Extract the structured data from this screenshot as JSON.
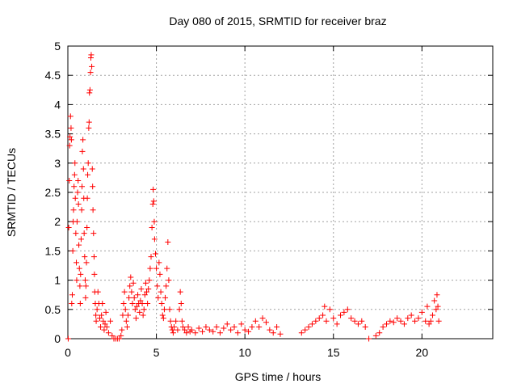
{
  "chart_data": {
    "type": "scatter",
    "title": "Day 080 of 2015, SRMTID for receiver braz",
    "xlabel": "GPS time / hours",
    "ylabel": "SRMTID / TECUs",
    "xlim": [
      0,
      24
    ],
    "ylim": [
      0,
      5
    ],
    "xticks": [
      0,
      5,
      10,
      15,
      20
    ],
    "yticks": [
      0,
      0.5,
      1,
      1.5,
      2,
      2.5,
      3,
      3.5,
      4,
      4.5,
      5
    ],
    "xtick_labels": [
      "0",
      "5",
      "10",
      "15",
      "20"
    ],
    "ytick_labels": [
      "0",
      "0.5",
      "1",
      "1.5",
      "2",
      "2.5",
      "3",
      "3.5",
      "4",
      "4.5",
      "5"
    ],
    "grid": true,
    "marker": "plus",
    "color": "#ff0000",
    "series": [
      {
        "name": "SRMTID",
        "points": [
          [
            0.02,
            0.0
          ],
          [
            0.05,
            1.9
          ],
          [
            0.08,
            2.7
          ],
          [
            0.1,
            3.3
          ],
          [
            0.12,
            3.45
          ],
          [
            0.15,
            3.8
          ],
          [
            0.18,
            3.6
          ],
          [
            0.2,
            3.4
          ],
          [
            0.22,
            0.6
          ],
          [
            0.25,
            0.75
          ],
          [
            0.28,
            1.5
          ],
          [
            0.3,
            2.0
          ],
          [
            0.32,
            2.2
          ],
          [
            0.35,
            2.6
          ],
          [
            0.38,
            2.8
          ],
          [
            0.4,
            3.0
          ],
          [
            0.42,
            2.4
          ],
          [
            0.45,
            1.8
          ],
          [
            0.48,
            1.3
          ],
          [
            0.5,
            1.0
          ],
          [
            0.52,
            2.0
          ],
          [
            0.55,
            2.5
          ],
          [
            0.58,
            2.7
          ],
          [
            0.6,
            2.3
          ],
          [
            0.62,
            1.6
          ],
          [
            0.65,
            1.2
          ],
          [
            0.68,
            0.9
          ],
          [
            0.7,
            0.6
          ],
          [
            0.72,
            1.1
          ],
          [
            0.75,
            1.7
          ],
          [
            0.78,
            2.2
          ],
          [
            0.8,
            2.6
          ],
          [
            0.82,
            3.2
          ],
          [
            0.85,
            3.4
          ],
          [
            0.88,
            2.9
          ],
          [
            0.9,
            2.4
          ],
          [
            0.92,
            1.8
          ],
          [
            0.95,
            1.4
          ],
          [
            0.98,
            1.0
          ],
          [
            1.0,
            0.7
          ],
          [
            1.02,
            0.9
          ],
          [
            1.05,
            1.3
          ],
          [
            1.08,
            1.9
          ],
          [
            1.1,
            2.4
          ],
          [
            1.12,
            2.8
          ],
          [
            1.15,
            3.0
          ],
          [
            1.18,
            3.6
          ],
          [
            1.2,
            3.7
          ],
          [
            1.22,
            4.2
          ],
          [
            1.25,
            4.25
          ],
          [
            1.28,
            4.55
          ],
          [
            1.3,
            4.8
          ],
          [
            1.32,
            4.85
          ],
          [
            1.35,
            4.65
          ],
          [
            1.38,
            2.9
          ],
          [
            1.4,
            2.6
          ],
          [
            1.42,
            2.2
          ],
          [
            1.45,
            1.8
          ],
          [
            1.48,
            1.4
          ],
          [
            1.5,
            1.1
          ],
          [
            1.52,
            0.8
          ],
          [
            1.55,
            0.6
          ],
          [
            1.58,
            0.4
          ],
          [
            1.6,
            0.3
          ],
          [
            1.65,
            0.5
          ],
          [
            1.7,
            0.8
          ],
          [
            1.75,
            0.6
          ],
          [
            1.8,
            0.35
          ],
          [
            1.85,
            0.2
          ],
          [
            1.9,
            0.4
          ],
          [
            1.95,
            0.6
          ],
          [
            2.0,
            0.3
          ],
          [
            2.05,
            0.15
          ],
          [
            2.1,
            0.25
          ],
          [
            2.15,
            0.45
          ],
          [
            2.2,
            0.2
          ],
          [
            2.3,
            0.1
          ],
          [
            2.4,
            0.3
          ],
          [
            2.5,
            0.05
          ],
          [
            2.6,
            0.0
          ],
          [
            2.7,
            0.0
          ],
          [
            2.8,
            0.0
          ],
          [
            2.9,
            0.0
          ],
          [
            3.0,
            0.05
          ],
          [
            3.05,
            0.15
          ],
          [
            3.1,
            0.4
          ],
          [
            3.15,
            0.6
          ],
          [
            3.2,
            0.8
          ],
          [
            3.25,
            0.5
          ],
          [
            3.3,
            0.3
          ],
          [
            3.35,
            0.2
          ],
          [
            3.4,
            0.4
          ],
          [
            3.45,
            0.7
          ],
          [
            3.5,
            0.9
          ],
          [
            3.55,
            1.05
          ],
          [
            3.6,
            0.8
          ],
          [
            3.65,
            0.6
          ],
          [
            3.7,
            0.95
          ],
          [
            3.75,
            0.7
          ],
          [
            3.8,
            0.5
          ],
          [
            3.85,
            0.35
          ],
          [
            3.9,
            0.55
          ],
          [
            3.95,
            0.75
          ],
          [
            4.0,
            0.6
          ],
          [
            4.05,
            0.45
          ],
          [
            4.1,
            0.65
          ],
          [
            4.15,
            0.85
          ],
          [
            4.2,
            0.6
          ],
          [
            4.25,
            0.4
          ],
          [
            4.3,
            0.5
          ],
          [
            4.35,
            0.75
          ],
          [
            4.4,
            0.95
          ],
          [
            4.45,
            0.8
          ],
          [
            4.5,
            0.6
          ],
          [
            4.55,
            0.85
          ],
          [
            4.6,
            1.0
          ],
          [
            4.65,
            1.2
          ],
          [
            4.7,
            1.4
          ],
          [
            4.75,
            1.9
          ],
          [
            4.8,
            2.3
          ],
          [
            4.82,
            2.55
          ],
          [
            4.85,
            2.35
          ],
          [
            4.88,
            2.0
          ],
          [
            4.9,
            1.7
          ],
          [
            4.95,
            1.45
          ],
          [
            5.0,
            1.2
          ],
          [
            5.05,
            0.9
          ],
          [
            5.1,
            0.7
          ],
          [
            5.15,
            1.3
          ],
          [
            5.2,
            1.1
          ],
          [
            5.25,
            0.8
          ],
          [
            5.3,
            0.6
          ],
          [
            5.35,
            0.4
          ],
          [
            5.4,
            0.35
          ],
          [
            5.45,
            0.5
          ],
          [
            5.5,
            0.7
          ],
          [
            5.55,
            0.9
          ],
          [
            5.6,
            1.2
          ],
          [
            5.65,
            1.65
          ],
          [
            5.7,
            1.0
          ],
          [
            5.75,
            0.5
          ],
          [
            5.8,
            0.3
          ],
          [
            5.85,
            0.2
          ],
          [
            5.9,
            0.15
          ],
          [
            5.95,
            0.1
          ],
          [
            6.0,
            0.2
          ],
          [
            6.1,
            0.3
          ],
          [
            6.2,
            0.15
          ],
          [
            6.3,
            0.5
          ],
          [
            6.35,
            0.8
          ],
          [
            6.4,
            0.6
          ],
          [
            6.45,
            0.3
          ],
          [
            6.5,
            0.2
          ],
          [
            6.6,
            0.15
          ],
          [
            6.7,
            0.1
          ],
          [
            6.8,
            0.2
          ],
          [
            6.9,
            0.12
          ],
          [
            7.0,
            0.15
          ],
          [
            7.2,
            0.1
          ],
          [
            7.4,
            0.18
          ],
          [
            7.6,
            0.12
          ],
          [
            7.8,
            0.2
          ],
          [
            8.0,
            0.15
          ],
          [
            8.2,
            0.12
          ],
          [
            8.4,
            0.2
          ],
          [
            8.6,
            0.1
          ],
          [
            8.8,
            0.18
          ],
          [
            9.0,
            0.25
          ],
          [
            9.2,
            0.15
          ],
          [
            9.4,
            0.2
          ],
          [
            9.6,
            0.1
          ],
          [
            9.8,
            0.25
          ],
          [
            10.0,
            0.15
          ],
          [
            10.2,
            0.12
          ],
          [
            10.4,
            0.2
          ],
          [
            10.6,
            0.3
          ],
          [
            10.8,
            0.2
          ],
          [
            11.0,
            0.35
          ],
          [
            11.2,
            0.28
          ],
          [
            11.4,
            0.15
          ],
          [
            11.6,
            0.1
          ],
          [
            11.8,
            0.2
          ],
          [
            12.0,
            0.08
          ],
          [
            13.2,
            0.1
          ],
          [
            13.4,
            0.15
          ],
          [
            13.6,
            0.2
          ],
          [
            13.8,
            0.25
          ],
          [
            14.0,
            0.3
          ],
          [
            14.2,
            0.35
          ],
          [
            14.4,
            0.4
          ],
          [
            14.5,
            0.55
          ],
          [
            14.6,
            0.3
          ],
          [
            14.8,
            0.5
          ],
          [
            15.0,
            0.35
          ],
          [
            15.2,
            0.25
          ],
          [
            15.4,
            0.4
          ],
          [
            15.6,
            0.45
          ],
          [
            15.8,
            0.5
          ],
          [
            16.0,
            0.35
          ],
          [
            16.2,
            0.3
          ],
          [
            16.4,
            0.25
          ],
          [
            16.6,
            0.3
          ],
          [
            16.8,
            0.2
          ],
          [
            17.0,
            0.0
          ],
          [
            17.4,
            0.05
          ],
          [
            17.6,
            0.1
          ],
          [
            17.8,
            0.2
          ],
          [
            18.0,
            0.25
          ],
          [
            18.2,
            0.3
          ],
          [
            18.4,
            0.28
          ],
          [
            18.6,
            0.35
          ],
          [
            18.8,
            0.3
          ],
          [
            19.0,
            0.25
          ],
          [
            19.2,
            0.35
          ],
          [
            19.4,
            0.4
          ],
          [
            19.6,
            0.3
          ],
          [
            19.8,
            0.35
          ],
          [
            20.0,
            0.45
          ],
          [
            20.2,
            0.3
          ],
          [
            20.3,
            0.55
          ],
          [
            20.4,
            0.25
          ],
          [
            20.5,
            0.3
          ],
          [
            20.6,
            0.4
          ],
          [
            20.7,
            0.65
          ],
          [
            20.8,
            0.5
          ],
          [
            20.85,
            0.75
          ],
          [
            20.9,
            0.55
          ],
          [
            20.95,
            0.3
          ]
        ]
      }
    ]
  }
}
